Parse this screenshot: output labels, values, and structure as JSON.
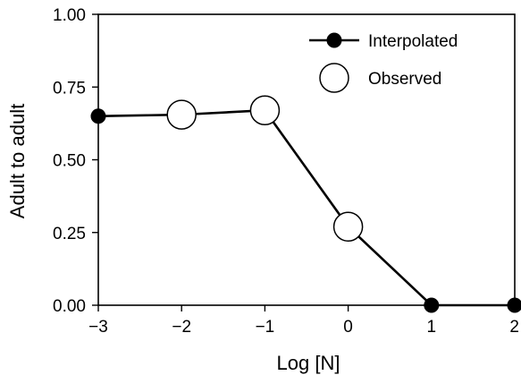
{
  "chart_data": {
    "type": "line",
    "title": "",
    "xlabel": "Log [N]",
    "ylabel": "Adult to adult",
    "xlim": [
      -3,
      2
    ],
    "ylim": [
      0,
      1
    ],
    "x_ticks": [
      -3,
      -2,
      -1,
      0,
      1,
      2
    ],
    "x_tick_labels": [
      "−3",
      "−2",
      "−1",
      "0",
      "1",
      "2"
    ],
    "y_ticks": [
      0,
      0.25,
      0.5,
      0.75,
      1.0
    ],
    "y_tick_labels": [
      "0.00",
      "0.25",
      "0.50",
      "0.75",
      "1.00"
    ],
    "grid": false,
    "legend_position": "top-right",
    "line": {
      "x": [
        -3,
        -2,
        -1,
        0,
        1,
        2
      ],
      "y": [
        0.65,
        0.655,
        0.67,
        0.27,
        0.0,
        0.0
      ]
    },
    "series": [
      {
        "name": "Interpolated",
        "marker": "filled-circle",
        "color": "#000000",
        "x": [
          -3,
          1,
          2
        ],
        "y": [
          0.65,
          0.0,
          0.0
        ]
      },
      {
        "name": "Observed",
        "marker": "open-circle",
        "color": "#000000",
        "x": [
          -2,
          -1,
          0
        ],
        "y": [
          0.655,
          0.67,
          0.27
        ]
      }
    ]
  }
}
